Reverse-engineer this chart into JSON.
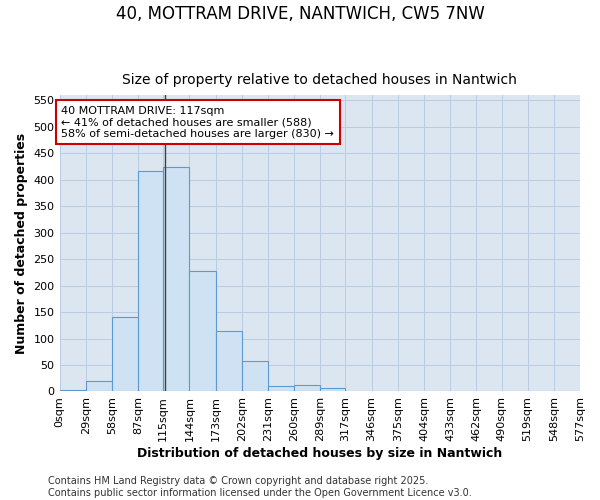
{
  "title": "40, MOTTRAM DRIVE, NANTWICH, CW5 7NW",
  "subtitle": "Size of property relative to detached houses in Nantwich",
  "xlabel": "Distribution of detached houses by size in Nantwich",
  "ylabel": "Number of detached properties",
  "bin_edges": [
    0,
    29,
    58,
    87,
    115,
    144,
    173,
    202,
    231,
    260,
    289,
    317,
    346,
    375,
    404,
    433,
    462,
    490,
    519,
    548,
    577
  ],
  "bar_heights": [
    2,
    20,
    140,
    417,
    424,
    228,
    115,
    58,
    11,
    13,
    6,
    0,
    1,
    0,
    0,
    0,
    0,
    0,
    1,
    0
  ],
  "bar_color": "#cfe2f3",
  "bar_edge_color": "#5b9bd5",
  "grid_color": "#b8cce4",
  "plot_bg_color": "#dce6f1",
  "fig_bg_color": "#ffffff",
  "vline_x": 117,
  "vline_color": "#404040",
  "annotation_text": "40 MOTTRAM DRIVE: 117sqm\n← 41% of detached houses are smaller (588)\n58% of semi-detached houses are larger (830) →",
  "annotation_box_facecolor": "#ffffff",
  "annotation_box_edgecolor": "#cc0000",
  "ylim": [
    0,
    560
  ],
  "yticks": [
    0,
    50,
    100,
    150,
    200,
    250,
    300,
    350,
    400,
    450,
    500,
    550
  ],
  "tick_labels": [
    "0sqm",
    "29sqm",
    "58sqm",
    "87sqm",
    "115sqm",
    "144sqm",
    "173sqm",
    "202sqm",
    "231sqm",
    "260sqm",
    "289sqm",
    "317sqm",
    "346sqm",
    "375sqm",
    "404sqm",
    "433sqm",
    "462sqm",
    "490sqm",
    "519sqm",
    "548sqm",
    "577sqm"
  ],
  "footer_text": "Contains HM Land Registry data © Crown copyright and database right 2025.\nContains public sector information licensed under the Open Government Licence v3.0.",
  "title_fontsize": 12,
  "subtitle_fontsize": 10,
  "axis_label_fontsize": 9,
  "tick_fontsize": 8,
  "annotation_fontsize": 8,
  "footer_fontsize": 7
}
